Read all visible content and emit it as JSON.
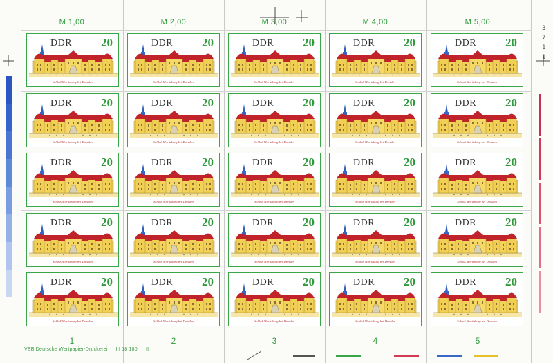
{
  "sheet": {
    "price_labels": [
      "M 1,00",
      "M 2,00",
      "M 3,00",
      "M 4,00",
      "M 5,00"
    ],
    "column_numbers": [
      "1",
      "2",
      "3",
      "4",
      "5"
    ],
    "printer_imprint": {
      "name": "VEB Deutsche Wertpapier-Druckerei",
      "code": "III 18 180",
      "suffix": "II"
    },
    "margin_number": [
      "3",
      "7",
      "1",
      "1"
    ]
  },
  "stamp": {
    "country": "DDR",
    "value": "20",
    "caption": "Schloß Moritzburg bei Dresden"
  },
  "colors": {
    "frame_green": "#3aa64a",
    "value_green": "#2e9a3c",
    "roof_red": "#c0242a",
    "wall_yellow": "#f3d25a",
    "tower_blue": "#2f5fb8",
    "strip_blue": "#3a68c8",
    "strip_red": "#d23a55"
  },
  "grid": {
    "rows": 5,
    "columns": 5
  }
}
